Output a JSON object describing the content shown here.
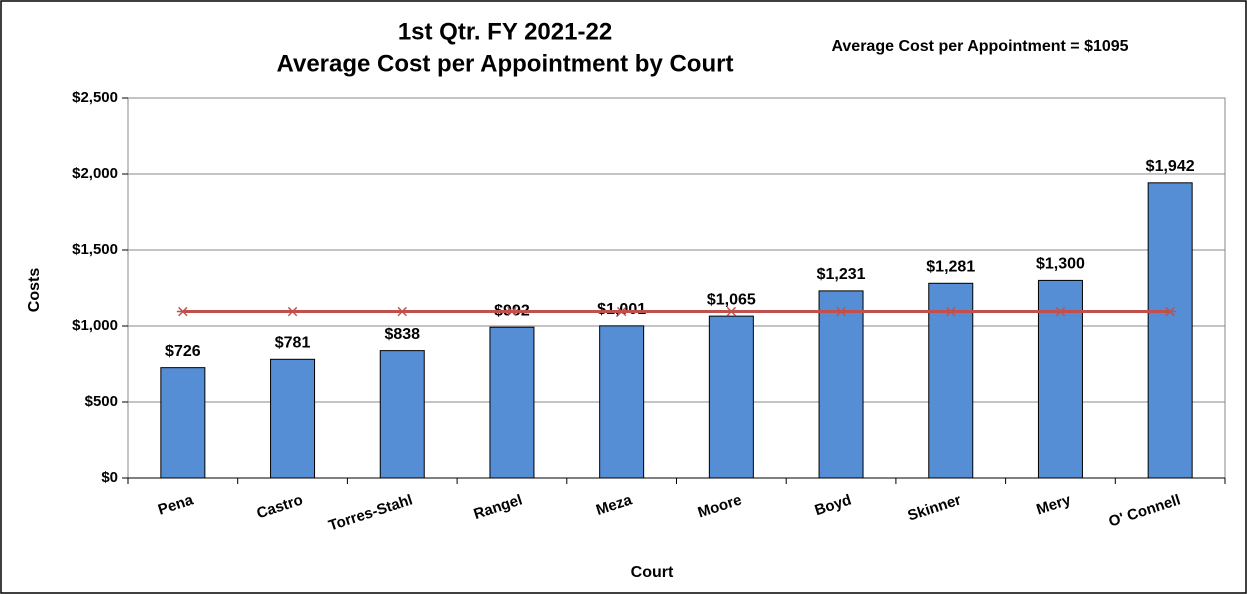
{
  "chart_data": {
    "type": "bar",
    "title": "1st Qtr. FY 2021-22",
    "subtitle": "Average Cost per Appointment by Court",
    "annotation": "Average Cost per Appointment = $1095",
    "x_label": "Court",
    "y_label": "Costs",
    "categories": [
      "Pena",
      "Castro",
      "Torres-Stahl",
      "Rangel",
      "Meza",
      "Moore",
      "Boyd",
      "Skinner",
      "Mery",
      "O' Connell"
    ],
    "series": [
      {
        "type": "bar",
        "color": "#558ed5",
        "values": [
          726,
          781,
          838,
          992,
          1001,
          1065,
          1231,
          1281,
          1300,
          1942
        ],
        "value_labels": [
          "$726",
          "$781",
          "$838",
          "$992",
          "$1,001",
          "$1,065",
          "$1,231",
          "$1,281",
          "$1,300",
          "$1,942"
        ]
      },
      {
        "type": "line",
        "color": "#c0504d",
        "values": [
          1095,
          1095,
          1095,
          1095,
          1095,
          1095,
          1095,
          1095,
          1095,
          1095
        ]
      }
    ],
    "ylim": [
      0,
      2500
    ],
    "yticks": [
      {
        "value": 0,
        "label": "$0"
      },
      {
        "value": 500,
        "label": "$500"
      },
      {
        "value": 1000,
        "label": "$1,000"
      },
      {
        "value": 1500,
        "label": "$1,500"
      },
      {
        "value": 2000,
        "label": "$2,000"
      },
      {
        "value": 2500,
        "label": "$2,500"
      }
    ],
    "grid": true
  }
}
